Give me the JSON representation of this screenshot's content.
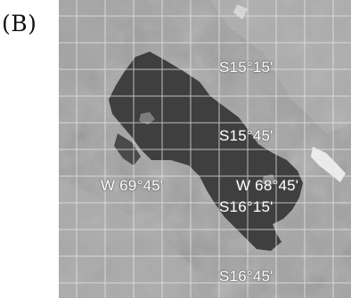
{
  "panel_label": "(B)",
  "latitude_labels": [
    "S15°15'",
    "S15°45'",
    "S16°15'",
    "S16°45'"
  ],
  "longitude_labels": [
    "W 69°45'",
    "W 68°45'"
  ],
  "colors": {
    "terrain": "#9b9b9b",
    "lake": "#3f3f3f",
    "grid": "#e8e8e8",
    "label": "#ffffff"
  }
}
